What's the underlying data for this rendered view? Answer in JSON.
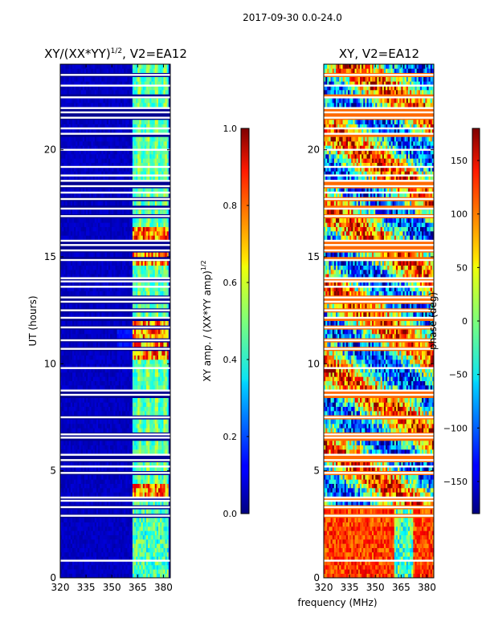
{
  "suptitle": "2017-09-30 0.0-24.0",
  "chart_data": [
    {
      "type": "heatmap",
      "title": "XY/(XX*YY)",
      "title_superscript": "1/2",
      "title_suffix": ", V2=EA12",
      "xlabel": "",
      "ylabel": "UT (hours)",
      "xlim": [
        320,
        384
      ],
      "ylim": [
        0,
        24
      ],
      "xticks": [
        "320",
        "335",
        "350",
        "365",
        "380"
      ],
      "xtick_values": [
        320,
        335,
        350,
        365,
        380
      ],
      "yticks": [
        "0",
        "5",
        "10",
        "15",
        "20"
      ],
      "ytick_values": [
        0,
        5,
        10,
        15,
        20
      ],
      "colorbar": {
        "label": "XY amp. / (XX*YY amp)",
        "label_superscript": "1/2",
        "range": [
          0.0,
          1.0
        ],
        "ticks": [
          "0.0",
          "0.2",
          "0.4",
          "0.6",
          "0.8",
          "1.0"
        ],
        "tick_values": [
          0.0,
          0.2,
          0.4,
          0.6,
          0.8,
          1.0
        ],
        "colormap": "jet"
      },
      "description": "Low amplitude (~0.05) below 362 MHz; channels 362-382 MHz show amplitude ~0.4-0.6, with peaks ~0.8-0.9 near 4 h, 10-12 h and 14.5-16 h UT; horizontal white gaps are flagged data."
    },
    {
      "type": "heatmap",
      "title": "XY, V2=EA12",
      "xlabel": "frequency (MHz)",
      "ylabel": "",
      "xlim": [
        320,
        384
      ],
      "ylim": [
        0,
        24
      ],
      "xticks": [
        "320",
        "335",
        "350",
        "365",
        "380"
      ],
      "xtick_values": [
        320,
        335,
        350,
        365,
        380
      ],
      "yticks": [
        "0",
        "5",
        "10",
        "15",
        "20"
      ],
      "ytick_values": [
        0,
        5,
        10,
        15,
        20
      ],
      "colorbar": {
        "label": "phase (deg)",
        "range": [
          -180,
          180
        ],
        "ticks": [
          "−150",
          "−100",
          "−50",
          "0",
          "50",
          "100",
          "150"
        ],
        "tick_values": [
          -150,
          -100,
          -50,
          0,
          50,
          100,
          150
        ],
        "colormap": "jet"
      },
      "description": "Phase is noisy across the band; mostly red/orange (+100 to +180 deg) below 3 h UT and mixed elsewhere."
    }
  ],
  "flagged_hours": [
    0.8,
    2.9,
    3.3,
    3.6,
    3.75,
    4.9,
    5.2,
    5.5,
    5.75,
    6.55,
    6.7,
    7.5,
    8.55,
    8.75,
    9.8,
    10.7,
    11.1,
    11.7,
    12.15,
    12.5,
    12.9,
    13.1,
    13.6,
    13.85,
    14.0,
    14.85,
    15.3,
    15.55,
    15.75,
    16.9,
    17.25,
    17.7,
    18.0,
    18.3,
    18.55,
    18.8,
    19.2,
    20.0,
    20.75,
    21.0,
    21.5,
    21.75,
    21.95,
    22.45,
    23.0,
    23.5
  ]
}
